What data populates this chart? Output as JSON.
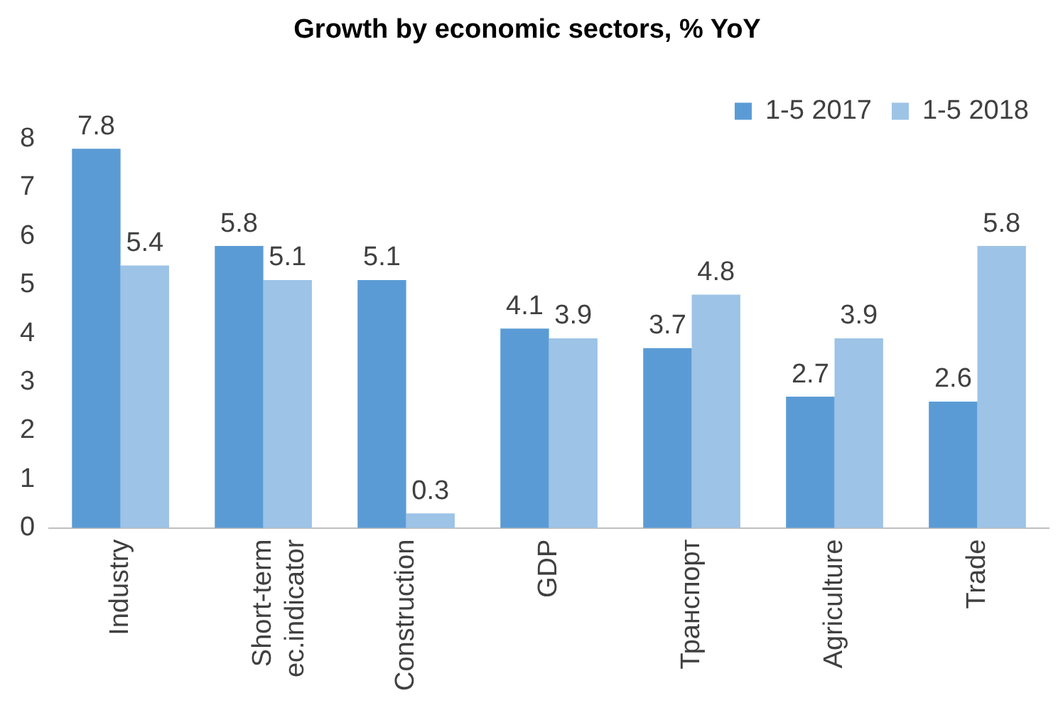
{
  "chart_data": {
    "type": "bar",
    "title": "Growth by economic sectors, % YoY",
    "categories": [
      "Industry",
      "Short-term ec.indicator",
      "Construction",
      "GDP",
      "Транспорт",
      "Agriculture",
      "Trade"
    ],
    "series": [
      {
        "name": "1-5 2017",
        "color": "#5b9bd5",
        "values": [
          7.8,
          5.8,
          5.1,
          4.1,
          3.7,
          2.7,
          2.6
        ]
      },
      {
        "name": "1-5 2018",
        "color": "#9dc3e6",
        "values": [
          5.4,
          5.1,
          0.3,
          3.9,
          4.8,
          3.9,
          5.8
        ]
      }
    ],
    "ylim": [
      0,
      8
    ],
    "yticks": [
      0,
      1,
      2,
      3,
      4,
      5,
      6,
      7,
      8
    ],
    "grid": false,
    "legend": "top right",
    "data_labels": true
  }
}
